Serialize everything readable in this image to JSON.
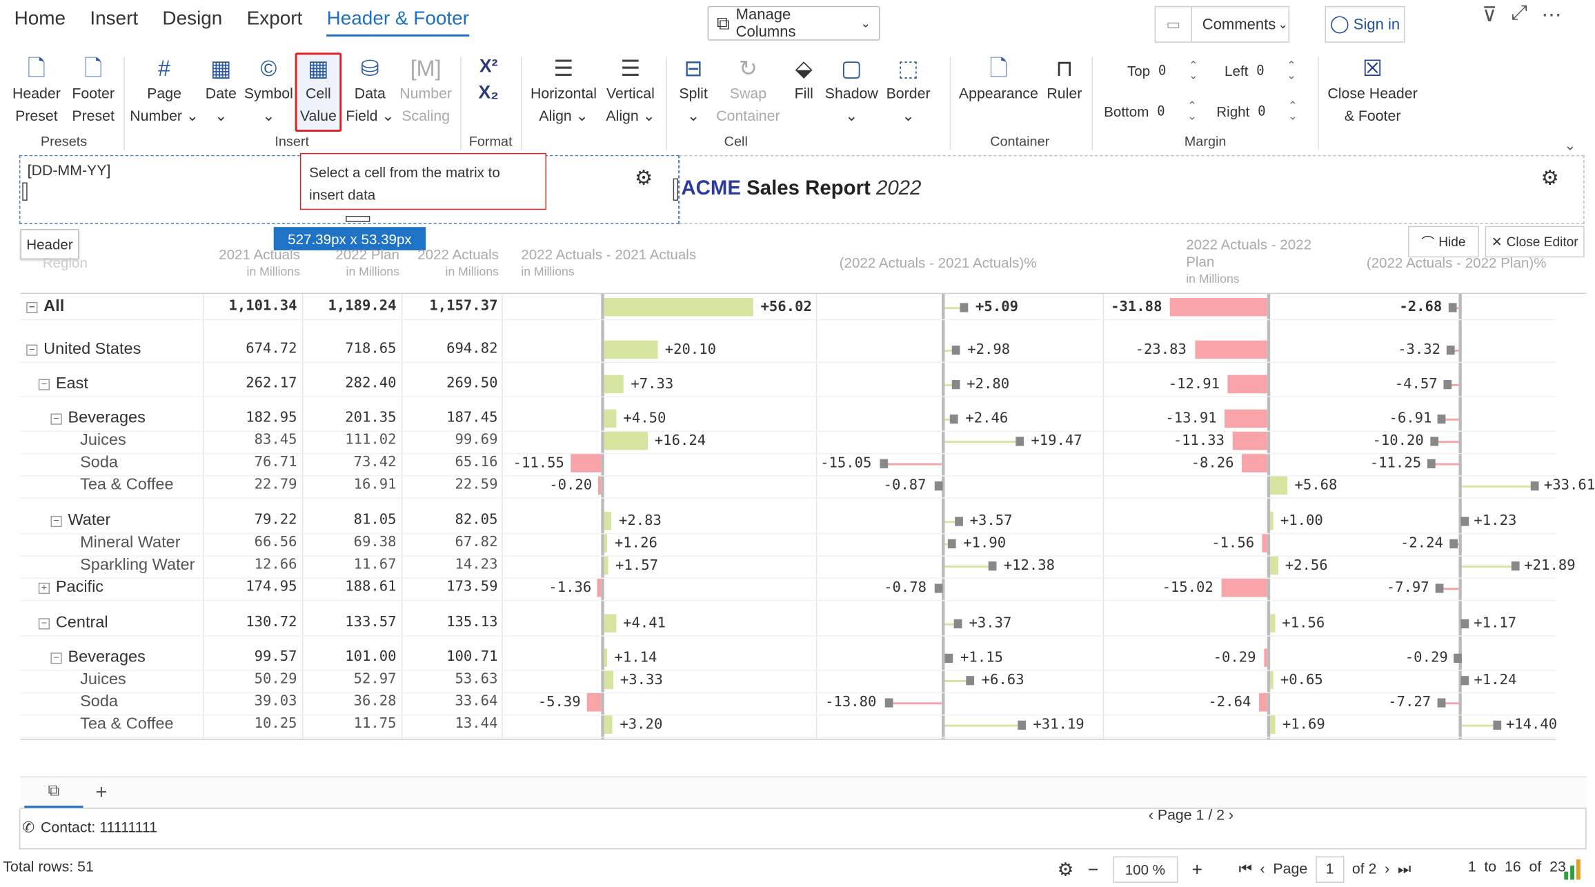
{
  "menu": {
    "tabs": [
      "Home",
      "Insert",
      "Design",
      "Export",
      "Header & Footer"
    ],
    "active": "Header & Footer",
    "manage_columns": "Manage Columns",
    "comments": "Comments",
    "sign_in": "Sign in"
  },
  "ribbon": {
    "header_preset": [
      "Header",
      "Preset"
    ],
    "footer_preset": [
      "Footer",
      "Preset"
    ],
    "page_number": [
      "Page",
      "Number"
    ],
    "date": "Date",
    "symbol": "Symbol",
    "cell_value": [
      "Cell",
      "Value"
    ],
    "data_field": [
      "Data",
      "Field"
    ],
    "number_scaling": [
      "Number",
      "Scaling"
    ],
    "superscript": "X²",
    "subscript": "X₂",
    "horizontal_align": [
      "Horizontal",
      "Align"
    ],
    "vertical_align": [
      "Vertical",
      "Align"
    ],
    "split": "Split",
    "swap_container": [
      "Swap",
      "Container"
    ],
    "fill": "Fill",
    "shadow": "Shadow",
    "border": "Border",
    "appearance": "Appearance",
    "ruler": "Ruler",
    "margin": {
      "top_label": "Top",
      "top": "0",
      "left_label": "Left",
      "left": "0",
      "bottom_label": "Bottom",
      "bottom": "0",
      "right_label": "Right",
      "right": "0"
    },
    "close_hf": [
      "Close Header",
      "& Footer"
    ],
    "groups": {
      "presets": "Presets",
      "insert": "Insert",
      "format": "Format",
      "cell": "Cell",
      "container": "Container",
      "margin": "Margin"
    }
  },
  "editor": {
    "date_field": "[DD-MM-YY]",
    "tooltip": "Select a cell from the matrix to insert data",
    "size": "527.39px x 53.39px",
    "title_acme": "ACME",
    "title_sales": "Sales Report",
    "title_year": "2022",
    "header_tag": "Header",
    "hide": "Hide",
    "close_editor": "Close Editor"
  },
  "columns": {
    "region": "Region",
    "c2021": "2021 Actuals",
    "c2022p": "2022 Plan",
    "c2022a": "2022 Actuals",
    "diff": "2022 Actuals - 2021 Actuals",
    "diffpct": "(2022 Actuals - 2021 Actuals)%",
    "pdiff": "2022 Actuals - 2022 Plan",
    "pdiffpct": "(2022 Actuals - 2022 Plan)%",
    "unit": "in Millions"
  },
  "rows": [
    {
      "label": "All",
      "lvl": 0,
      "exp": "−",
      "bold": true,
      "a21": "1,101.34",
      "p22": "1,189.24",
      "a22": "1,157.37",
      "d": 56.02,
      "dl": "+56.02",
      "dp": 5.09,
      "dpl": "+5.09",
      "pd": -31.88,
      "pdl": "-31.88",
      "pp": -2.68,
      "ppl": "-2.68"
    },
    {
      "label": "United States",
      "lvl": 0,
      "exp": "−",
      "bold": false,
      "a21": "674.72",
      "p22": "718.65",
      "a22": "694.82",
      "d": 20.1,
      "dl": "+20.10",
      "dp": 2.98,
      "dpl": "+2.98",
      "pd": -23.83,
      "pdl": "-23.83",
      "pp": -3.32,
      "ppl": "-3.32"
    },
    {
      "label": "East",
      "lvl": 1,
      "exp": "−",
      "bold": false,
      "a21": "262.17",
      "p22": "282.40",
      "a22": "269.50",
      "d": 7.33,
      "dl": "+7.33",
      "dp": 2.8,
      "dpl": "+2.80",
      "pd": -12.91,
      "pdl": "-12.91",
      "pp": -4.57,
      "ppl": "-4.57"
    },
    {
      "label": "Beverages",
      "lvl": 2,
      "exp": "−",
      "bold": false,
      "a21": "182.95",
      "p22": "201.35",
      "a22": "187.45",
      "d": 4.5,
      "dl": "+4.50",
      "dp": 2.46,
      "dpl": "+2.46",
      "pd": -13.91,
      "pdl": "-13.91",
      "pp": -6.91,
      "ppl": "-6.91"
    },
    {
      "label": "Juices",
      "lvl": 3,
      "exp": "",
      "bold": false,
      "a21": "83.45",
      "p22": "111.02",
      "a22": "99.69",
      "d": 16.24,
      "dl": "+16.24",
      "dp": 19.47,
      "dpl": "+19.47",
      "pd": -11.33,
      "pdl": "-11.33",
      "pp": -10.2,
      "ppl": "-10.20"
    },
    {
      "label": "Soda",
      "lvl": 3,
      "exp": "",
      "bold": false,
      "a21": "76.71",
      "p22": "73.42",
      "a22": "65.16",
      "d": -11.55,
      "dl": "-11.55",
      "dp": -15.05,
      "dpl": "-15.05",
      "pd": -8.26,
      "pdl": "-8.26",
      "pp": -11.25,
      "ppl": "-11.25"
    },
    {
      "label": "Tea & Coffee",
      "lvl": 3,
      "exp": "",
      "bold": false,
      "a21": "22.79",
      "p22": "16.91",
      "a22": "22.59",
      "d": -0.2,
      "dl": "-0.20",
      "dp": -0.87,
      "dpl": "-0.87",
      "pd": 5.68,
      "pdl": "+5.68",
      "pp": 33.61,
      "ppl": "+33.61"
    },
    {
      "label": "Water",
      "lvl": 2,
      "exp": "−",
      "bold": false,
      "a21": "79.22",
      "p22": "81.05",
      "a22": "82.05",
      "d": 2.83,
      "dl": "+2.83",
      "dp": 3.57,
      "dpl": "+3.57",
      "pd": 1.0,
      "pdl": "+1.00",
      "pp": 1.23,
      "ppl": "+1.23"
    },
    {
      "label": "Mineral Water",
      "lvl": 3,
      "exp": "",
      "bold": false,
      "a21": "66.56",
      "p22": "69.38",
      "a22": "67.82",
      "d": 1.26,
      "dl": "+1.26",
      "dp": 1.9,
      "dpl": "+1.90",
      "pd": -1.56,
      "pdl": "-1.56",
      "pp": -2.24,
      "ppl": "-2.24"
    },
    {
      "label": "Sparkling Water",
      "lvl": 3,
      "exp": "",
      "bold": false,
      "a21": "12.66",
      "p22": "11.67",
      "a22": "14.23",
      "d": 1.57,
      "dl": "+1.57",
      "dp": 12.38,
      "dpl": "+12.38",
      "pd": 2.56,
      "pdl": "+2.56",
      "pp": 21.89,
      "ppl": "+21.89"
    },
    {
      "label": "Pacific",
      "lvl": 1,
      "exp": "+",
      "bold": false,
      "a21": "174.95",
      "p22": "188.61",
      "a22": "173.59",
      "d": -1.36,
      "dl": "-1.36",
      "dp": -0.78,
      "dpl": "-0.78",
      "pd": -15.02,
      "pdl": "-15.02",
      "pp": -7.97,
      "ppl": "-7.97"
    },
    {
      "label": "Central",
      "lvl": 1,
      "exp": "−",
      "bold": false,
      "a21": "130.72",
      "p22": "133.57",
      "a22": "135.13",
      "d": 4.41,
      "dl": "+4.41",
      "dp": 3.37,
      "dpl": "+3.37",
      "pd": 1.56,
      "pdl": "+1.56",
      "pp": 1.17,
      "ppl": "+1.17"
    },
    {
      "label": "Beverages",
      "lvl": 2,
      "exp": "−",
      "bold": false,
      "a21": "99.57",
      "p22": "101.00",
      "a22": "100.71",
      "d": 1.14,
      "dl": "+1.14",
      "dp": 1.15,
      "dpl": "+1.15",
      "pd": -0.29,
      "pdl": "-0.29",
      "pp": -0.29,
      "ppl": "-0.29"
    },
    {
      "label": "Juices",
      "lvl": 3,
      "exp": "",
      "bold": false,
      "a21": "50.29",
      "p22": "52.97",
      "a22": "53.63",
      "d": 3.33,
      "dl": "+3.33",
      "dp": 6.63,
      "dpl": "+6.63",
      "pd": 0.65,
      "pdl": "+0.65",
      "pp": 1.24,
      "ppl": "+1.24"
    },
    {
      "label": "Soda",
      "lvl": 3,
      "exp": "",
      "bold": false,
      "a21": "39.03",
      "p22": "36.28",
      "a22": "33.64",
      "d": -5.39,
      "dl": "-5.39",
      "dp": -13.8,
      "dpl": "-13.80",
      "pd": -2.64,
      "pdl": "-2.64",
      "pp": -7.27,
      "ppl": "-7.27"
    },
    {
      "label": "Tea & Coffee",
      "lvl": 3,
      "exp": "",
      "bold": false,
      "a21": "10.25",
      "p22": "11.75",
      "a22": "13.44",
      "d": 3.2,
      "dl": "+3.20",
      "dp": 31.19,
      "dpl": "+31.19",
      "pd": 1.69,
      "pdl": "+1.69",
      "pp": 14.4,
      "ppl": "+14.40"
    }
  ],
  "colors": {
    "positive": "#d5e5a0",
    "negative": "#f7a3a8",
    "accent": "#1e6fc4",
    "marker": "#888888"
  },
  "footer": {
    "contact": "Contact: 11111111",
    "page_indicator": "Page 1 / 2"
  },
  "status": {
    "total_rows": "Total rows: 51",
    "zoom": "100 %",
    "page_label": "Page",
    "page": "1",
    "of": "of 2",
    "range": "1  to  16  of  23"
  }
}
